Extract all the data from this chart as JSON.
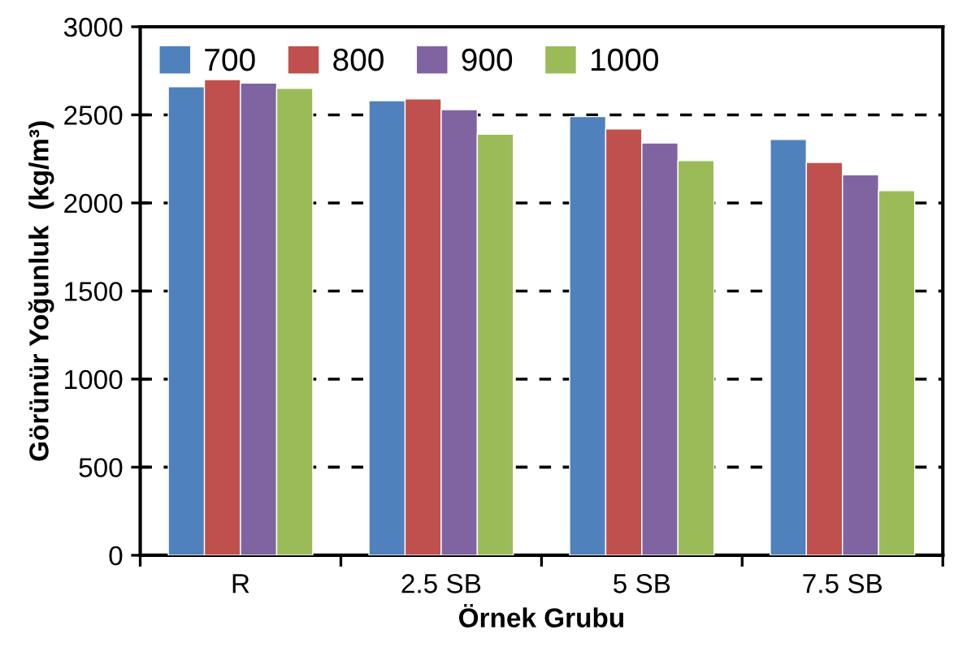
{
  "chart_data": {
    "type": "bar",
    "xlabel": "Örnek Grubu",
    "ylabel": "Görünür Yoğunluk  (kg/m³)",
    "categories": [
      "R",
      "2.5 SB",
      "5 SB",
      "7.5 SB"
    ],
    "series": [
      {
        "name": "700",
        "color": "#4f81bd",
        "values": [
          2660,
          2580,
          2490,
          2360
        ]
      },
      {
        "name": "800",
        "color": "#c0504d",
        "values": [
          2700,
          2590,
          2420,
          2230
        ]
      },
      {
        "name": "900",
        "color": "#8064a2",
        "values": [
          2680,
          2530,
          2340,
          2160
        ]
      },
      {
        "name": "1000",
        "color": "#9bbb59",
        "values": [
          2650,
          2390,
          2240,
          2070
        ]
      }
    ],
    "ylim": [
      0,
      3000
    ],
    "yticks": [
      0,
      500,
      1000,
      1500,
      2000,
      2500,
      3000
    ],
    "grid": "y",
    "legend": "top left"
  }
}
